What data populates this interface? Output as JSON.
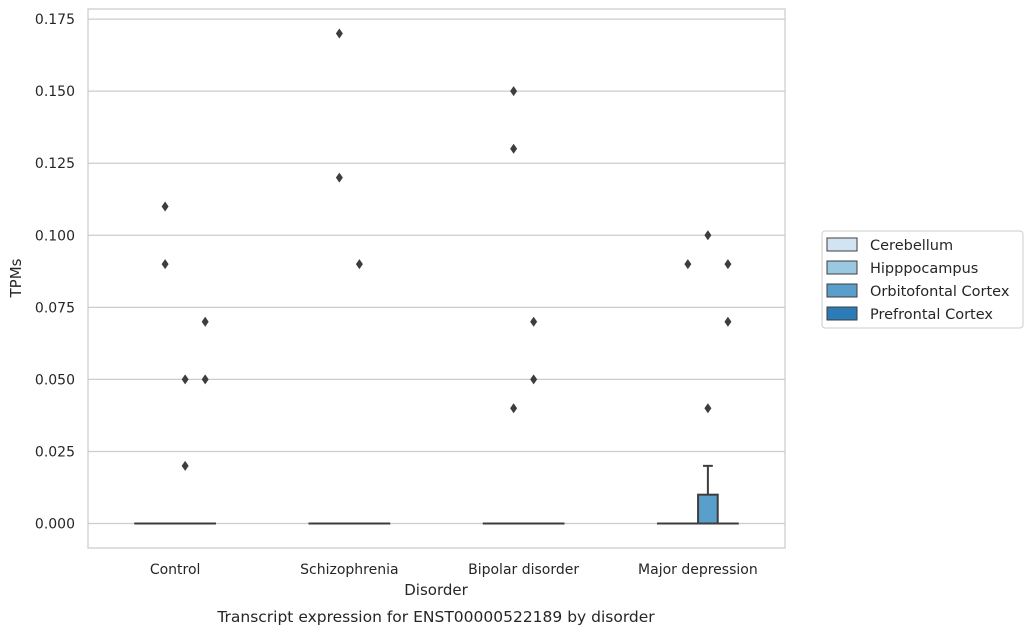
{
  "caption": "Transcript expression for ENST00000522189 by disorder",
  "chart_data": {
    "type": "box",
    "xlabel": "Disorder",
    "ylabel": "TPMs",
    "ylim": [
      -0.0085,
      0.1785
    ],
    "yticks": [
      0.0,
      0.025,
      0.05,
      0.075,
      0.1,
      0.125,
      0.15,
      0.175
    ],
    "ytick_labels": [
      "0.000",
      "0.025",
      "0.050",
      "0.075",
      "0.100",
      "0.125",
      "0.150",
      "0.175"
    ],
    "grid": "horizontal",
    "categories": [
      "Control",
      "Schizophrenia",
      "Bipolar disorder",
      "Major depression"
    ],
    "legend_position": "right-center",
    "series": [
      {
        "name": "Cerebellum",
        "color": "#d2e3f3",
        "boxes": [
          {
            "q1": 0,
            "median": 0,
            "q3": 0,
            "whisker_low": 0,
            "whisker_high": 0,
            "outliers": []
          },
          {
            "q1": 0,
            "median": 0,
            "q3": 0,
            "whisker_low": 0,
            "whisker_high": 0,
            "outliers": []
          },
          {
            "q1": 0,
            "median": 0,
            "q3": 0,
            "whisker_low": 0,
            "whisker_high": 0,
            "outliers": []
          },
          {
            "q1": 0,
            "median": 0,
            "q3": 0,
            "whisker_low": 0,
            "whisker_high": 0,
            "outliers": []
          }
        ]
      },
      {
        "name": "Hipppocampus",
        "color": "#9ac8e0",
        "boxes": [
          {
            "q1": 0,
            "median": 0,
            "q3": 0,
            "whisker_low": 0,
            "whisker_high": 0,
            "outliers": [
              0.11,
              0.09
            ]
          },
          {
            "q1": 0,
            "median": 0,
            "q3": 0,
            "whisker_low": 0,
            "whisker_high": 0,
            "outliers": [
              0.17,
              0.12
            ]
          },
          {
            "q1": 0,
            "median": 0,
            "q3": 0,
            "whisker_low": 0,
            "whisker_high": 0,
            "outliers": [
              0.15,
              0.13,
              0.04
            ]
          },
          {
            "q1": 0,
            "median": 0,
            "q3": 0,
            "whisker_low": 0,
            "whisker_high": 0,
            "outliers": [
              0.09
            ]
          }
        ]
      },
      {
        "name": "Orbitofontal Cortex",
        "color": "#5a9fcb",
        "boxes": [
          {
            "q1": 0,
            "median": 0,
            "q3": 0,
            "whisker_low": 0,
            "whisker_high": 0,
            "outliers": [
              0.05,
              0.02
            ]
          },
          {
            "q1": 0,
            "median": 0,
            "q3": 0,
            "whisker_low": 0,
            "whisker_high": 0,
            "outliers": [
              0.09
            ]
          },
          {
            "q1": 0,
            "median": 0,
            "q3": 0,
            "whisker_low": 0,
            "whisker_high": 0,
            "outliers": [
              0.07,
              0.05
            ]
          },
          {
            "q1": 0,
            "median": 0,
            "q3": 0.01,
            "whisker_low": 0,
            "whisker_high": 0.02,
            "outliers": [
              0.1,
              0.04
            ]
          }
        ]
      },
      {
        "name": "Prefrontal Cortex",
        "color": "#2c7bb6",
        "boxes": [
          {
            "q1": 0,
            "median": 0,
            "q3": 0,
            "whisker_low": 0,
            "whisker_high": 0,
            "outliers": [
              0.07,
              0.05
            ]
          },
          {
            "q1": 0,
            "median": 0,
            "q3": 0,
            "whisker_low": 0,
            "whisker_high": 0,
            "outliers": []
          },
          {
            "q1": 0,
            "median": 0,
            "q3": 0,
            "whisker_low": 0,
            "whisker_high": 0,
            "outliers": []
          },
          {
            "q1": 0,
            "median": 0,
            "q3": 0,
            "whisker_low": 0,
            "whisker_high": 0,
            "outliers": [
              0.09,
              0.07
            ]
          }
        ]
      }
    ]
  }
}
